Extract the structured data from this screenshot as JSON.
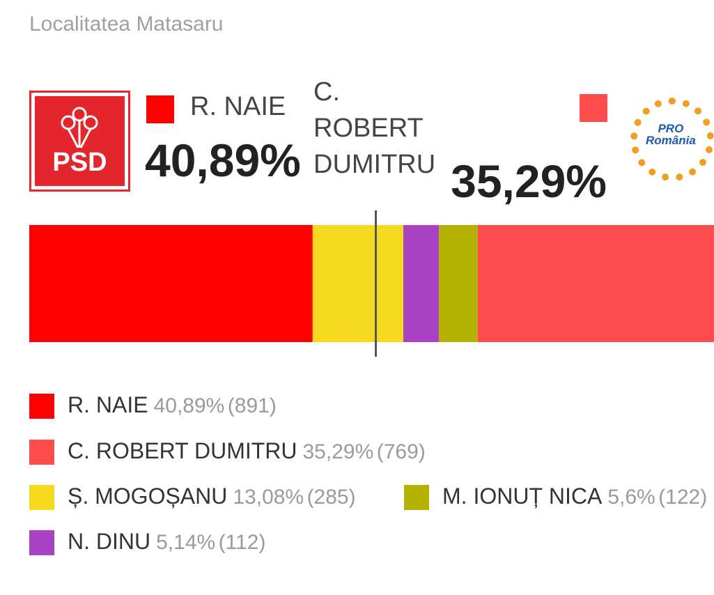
{
  "chart_data": {
    "type": "stacked-bar",
    "title": "Localitatea Matasaru",
    "logos": {
      "left": "PSD",
      "right": [
        "PRO",
        "România"
      ]
    },
    "threshold": 50,
    "xlim": [
      0,
      100
    ],
    "series": [
      {
        "name": "R. NAIE",
        "color": "#ff0000",
        "values": [
          40.89
        ],
        "value_labels": [
          "40,89%"
        ],
        "votes": [
          891
        ],
        "vote_labels": [
          "(891)"
        ]
      },
      {
        "name": "Ș. MOGOȘANU",
        "color": "#f5d91f",
        "values": [
          13.08
        ],
        "value_labels": [
          "13,08%"
        ],
        "votes": [
          285
        ],
        "vote_labels": [
          "(285)"
        ]
      },
      {
        "name": "N. DINU",
        "color": "#a942c4",
        "values": [
          5.14
        ],
        "value_labels": [
          "5,14%"
        ],
        "votes": [
          112
        ],
        "vote_labels": [
          "(112)"
        ]
      },
      {
        "name": "M. IONUȚ NICA",
        "color": "#b5b100",
        "values": [
          5.6
        ],
        "value_labels": [
          "5,6%"
        ],
        "votes": [
          122
        ],
        "vote_labels": [
          "(122)"
        ]
      },
      {
        "name": "C. ROBERT DUMITRU",
        "color": "#ff4d4d",
        "values": [
          35.29
        ],
        "value_labels": [
          "35,29%"
        ],
        "votes": [
          769
        ],
        "vote_labels": [
          "(769)"
        ]
      }
    ]
  }
}
